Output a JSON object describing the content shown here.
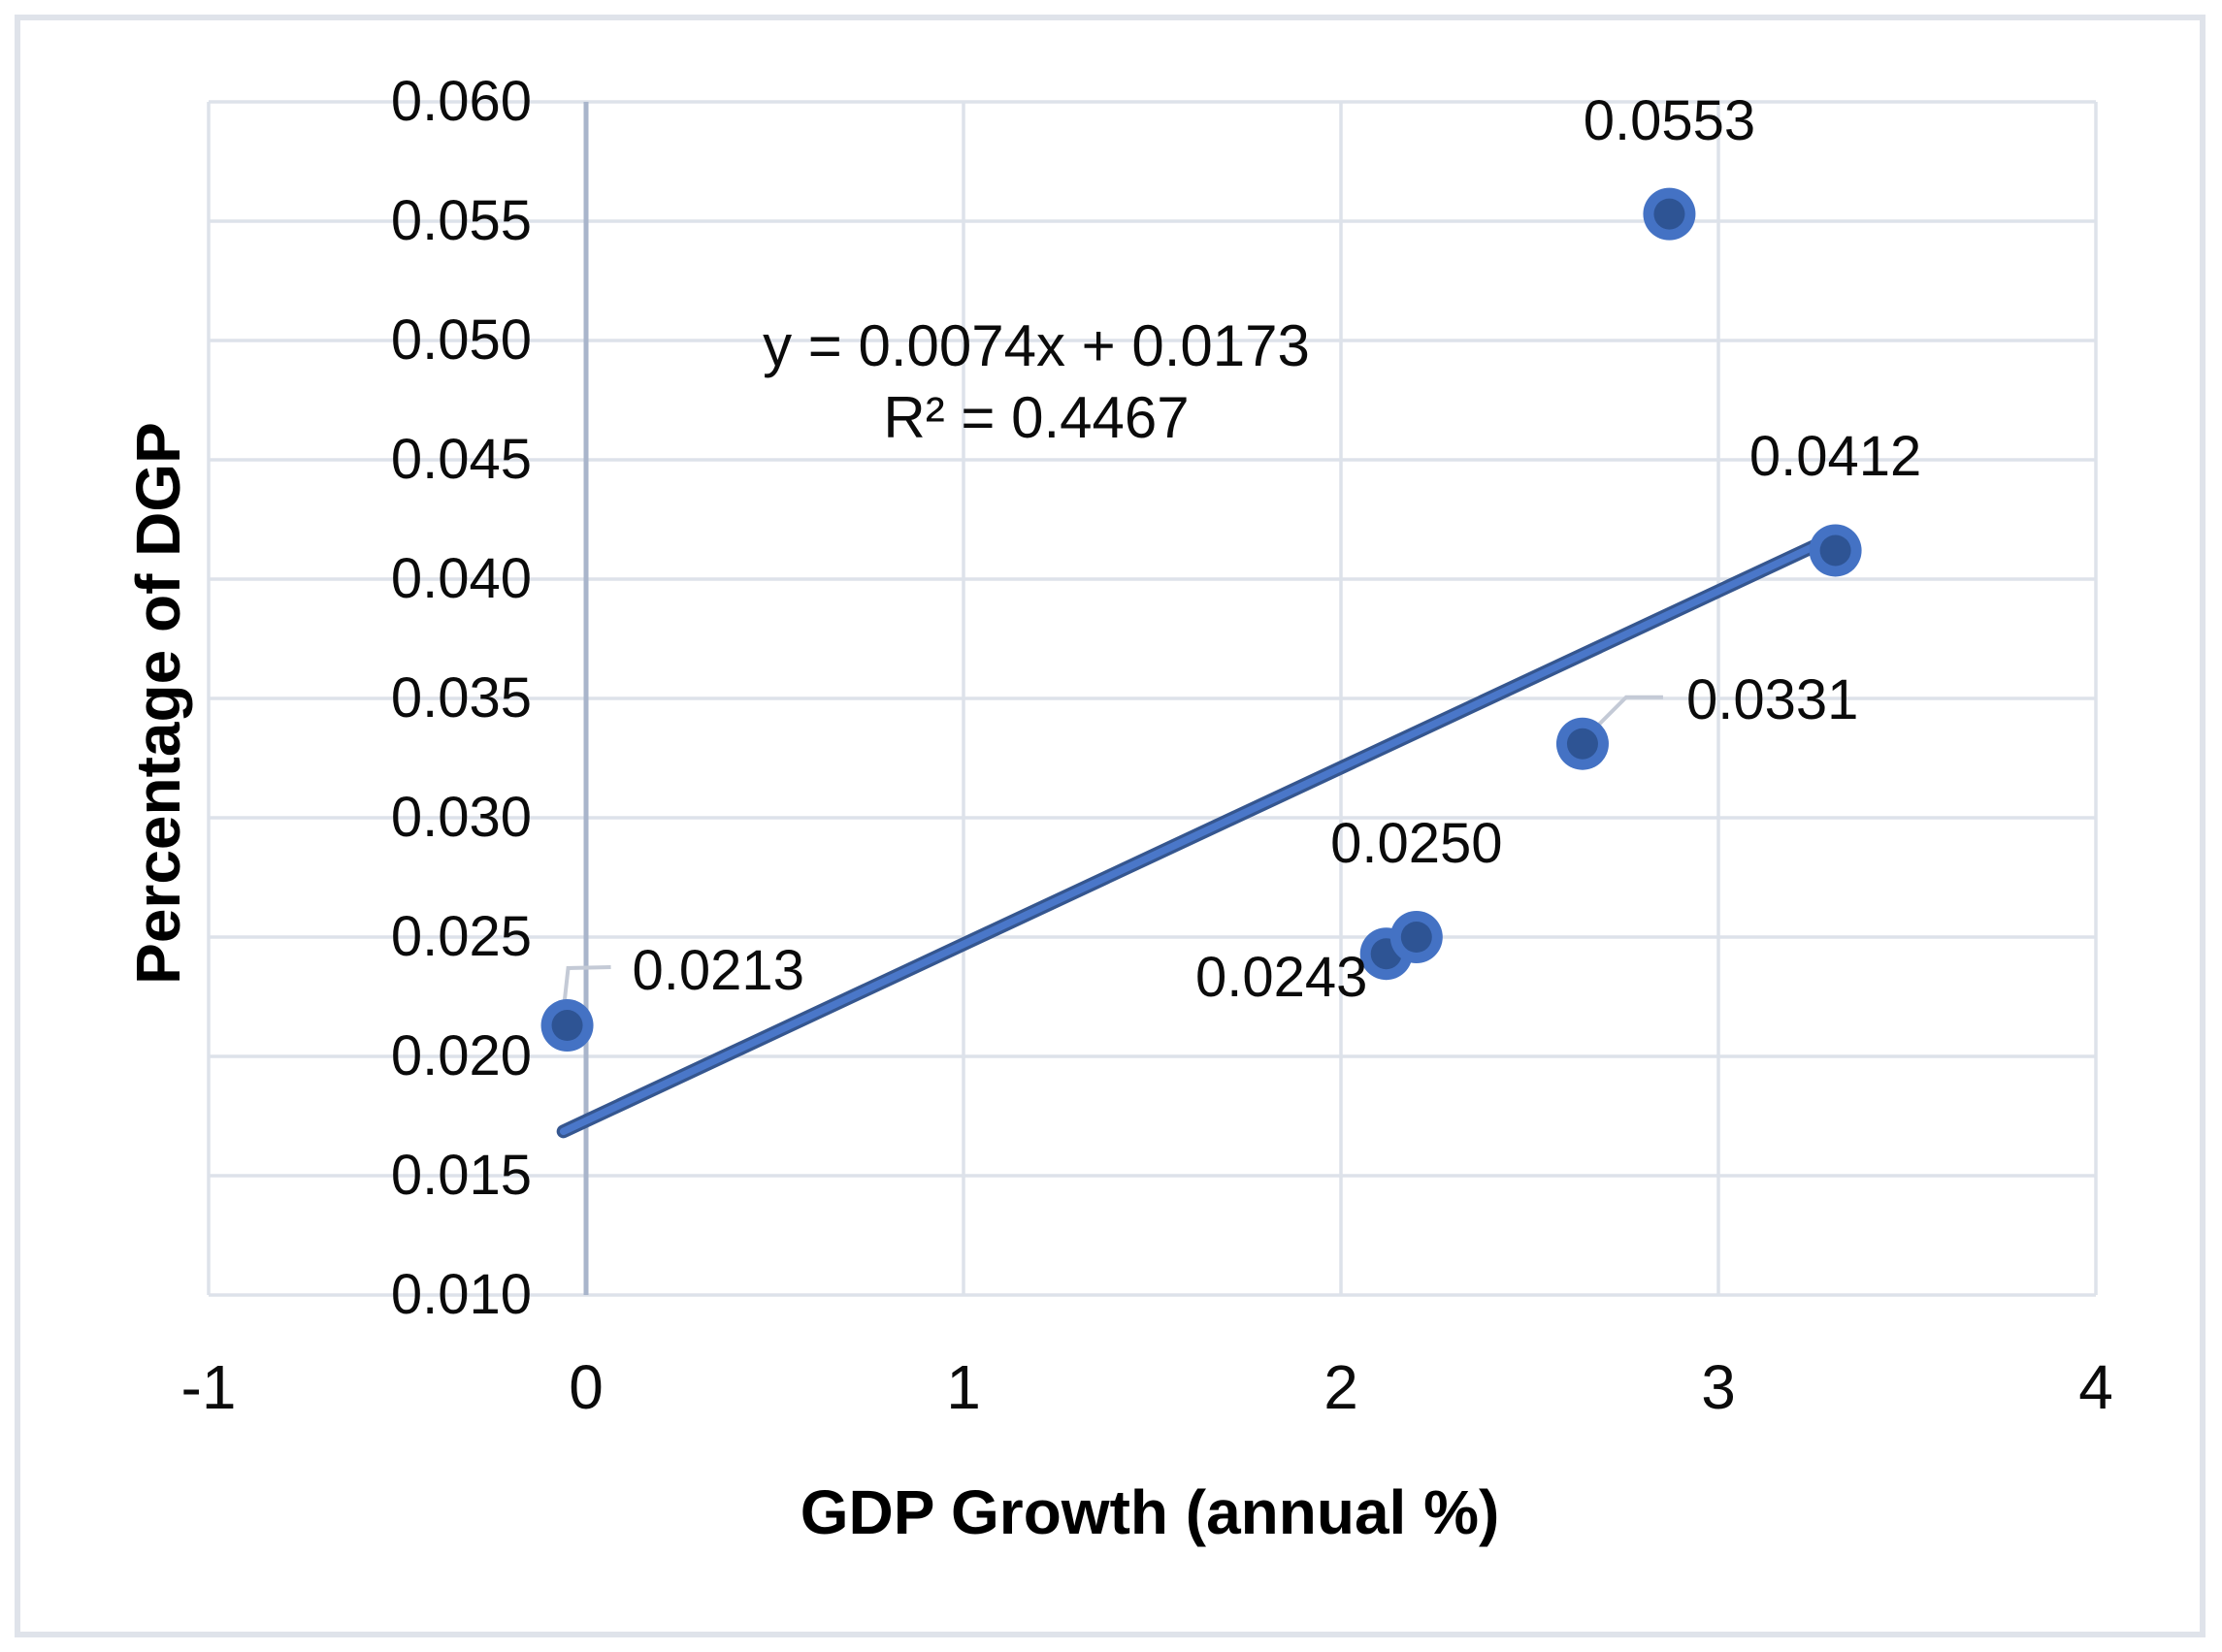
{
  "chart_data": {
    "type": "scatter",
    "title": "",
    "xlabel": "GDP Growth (annual %)",
    "ylabel": "Percentage of DGP",
    "xlim": [
      -1,
      4
    ],
    "ylim": [
      0.01,
      0.06
    ],
    "grid": true,
    "legend": false,
    "x_tick_labels": [
      "-1",
      "0",
      "1",
      "2",
      "3",
      "4"
    ],
    "x_tick_values": [
      -1,
      0,
      1,
      2,
      3,
      4
    ],
    "y_tick_labels": [
      "0.060",
      "0.055",
      "0.050",
      "0.045",
      "0.040",
      "0.035",
      "0.030",
      "0.025",
      "0.020",
      "0.015",
      "0.010"
    ],
    "y_tick_values": [
      0.06,
      0.055,
      0.05,
      0.045,
      0.04,
      0.035,
      0.03,
      0.025,
      0.02,
      0.015,
      0.01
    ],
    "points": [
      {
        "x": -0.05,
        "y": 0.0213,
        "label": "0.0213",
        "label_placement": "right-leader"
      },
      {
        "x": 2.12,
        "y": 0.0243,
        "label": "0.0243",
        "label_placement": "left"
      },
      {
        "x": 2.2,
        "y": 0.025,
        "label": "0.0250",
        "label_placement": "above"
      },
      {
        "x": 2.64,
        "y": 0.0331,
        "label": "0.0331",
        "label_placement": "right-leader"
      },
      {
        "x": 2.87,
        "y": 0.0553,
        "label": "0.0553",
        "label_placement": "above"
      },
      {
        "x": 3.31,
        "y": 0.0412,
        "label": "0.0412",
        "label_placement": "above"
      }
    ],
    "trendline": {
      "equation": "y = 0.0074x + 0.0173",
      "r_squared": "R² = 0.4467",
      "slope": 0.0074,
      "intercept": 0.0173,
      "x_start": -0.06,
      "x_end": 3.3
    },
    "colors": {
      "marker_outer": "#4472c4",
      "marker_inner": "#2e5494",
      "trendline_dark": "#35568f",
      "trendline_light": "#4a77c9",
      "gridline": "#dde2ea",
      "axis_line": "#a9b5cb",
      "leader_line": "#c4cad6",
      "chart_border": "#dfe3ea",
      "text": "#0b0b0b"
    }
  }
}
